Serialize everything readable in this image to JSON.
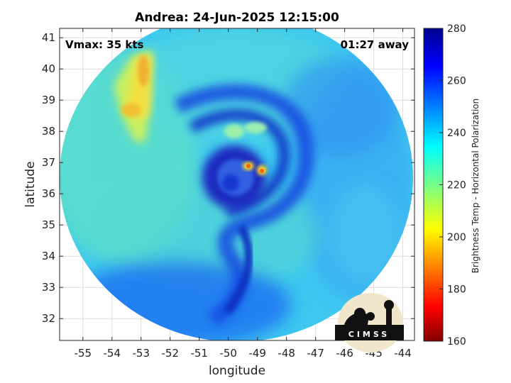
{
  "chart_data": {
    "type": "heatmap",
    "title": "Andrea: 24-Jun-2025 12:15:00",
    "xlabel": "longitude",
    "ylabel": "latitude",
    "xlim": [
      -55.8,
      -43.6
    ],
    "ylim": [
      31.3,
      41.3
    ],
    "x_ticks": [
      "-55",
      "-54",
      "-53",
      "-52",
      "-51",
      "-50",
      "-49",
      "-48",
      "-47",
      "-46",
      "-45",
      "-44"
    ],
    "y_ticks": [
      "32",
      "33",
      "34",
      "35",
      "36",
      "37",
      "38",
      "39",
      "40",
      "41"
    ],
    "grid": true,
    "annotations": {
      "vmax": "Vmax: 35 kts",
      "time_away": "01:27 away"
    },
    "colorbar": {
      "label": "Brightness Temp - Horizontal Polarization",
      "min": 160,
      "max": 280,
      "ticks": [
        "160",
        "180",
        "200",
        "220",
        "240",
        "260",
        "280"
      ],
      "colormap": "jet",
      "placement": "right"
    },
    "storm_center": {
      "lon": -49.9,
      "lat": 36.6
    },
    "warm_cores": [
      {
        "lon": -49.3,
        "lat": 36.9,
        "value": 195
      },
      {
        "lon": -48.9,
        "lat": 36.75,
        "value": 190
      }
    ],
    "features": [
      {
        "name": "warm band west",
        "lon": -52.9,
        "lat_range": [
          38.0,
          40.7
        ],
        "value": 205
      },
      {
        "name": "cold spiral band",
        "description_value": 268
      },
      {
        "name": "background",
        "value": 240
      }
    ]
  },
  "logo": {
    "text": "CIMSS"
  }
}
